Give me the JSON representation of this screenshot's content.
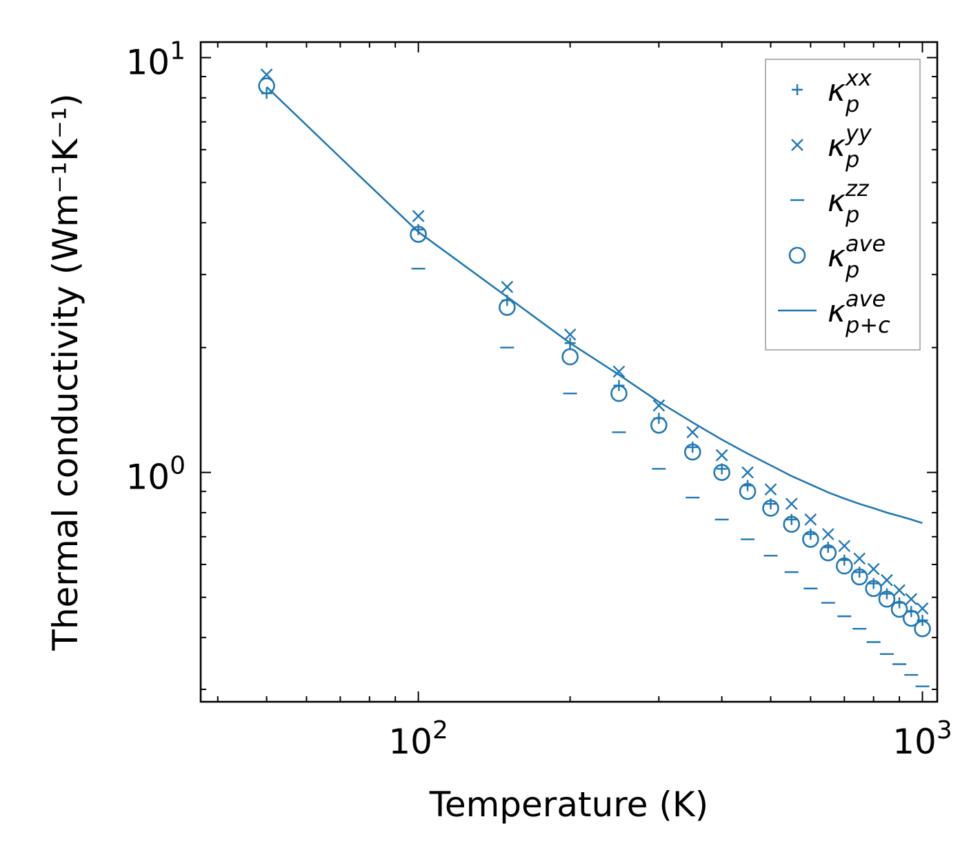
{
  "chart_data": {
    "type": "scatter",
    "x_scale": "log",
    "y_scale": "log",
    "xlabel": "Temperature (K)",
    "ylabel": "Thermal conductivity (Wm⁻¹K⁻¹)",
    "xlim": [
      37,
      1070
    ],
    "ylim": [
      0.28,
      10.9
    ],
    "x_ticks": [
      {
        "value": 100,
        "base": "10",
        "exp": "2"
      },
      {
        "value": 1000,
        "base": "10",
        "exp": "3"
      }
    ],
    "y_ticks": [
      {
        "value": 1,
        "base": "10",
        "exp": "0"
      },
      {
        "value": 10,
        "base": "10",
        "exp": "1"
      }
    ],
    "legend_position": "top-right",
    "color": "#1f77b4",
    "series": [
      {
        "name": "kappa_p^xx",
        "base": "κ",
        "sub": "p",
        "sup": "xx",
        "marker": "plus",
        "x": [
          50,
          100,
          150,
          200,
          250,
          300,
          350,
          400,
          450,
          500,
          550,
          600,
          650,
          700,
          750,
          800,
          850,
          900,
          950,
          1000
        ],
        "y": [
          8.2,
          3.85,
          2.6,
          2.05,
          1.62,
          1.35,
          1.15,
          1.02,
          0.93,
          0.84,
          0.77,
          0.71,
          0.66,
          0.615,
          0.575,
          0.54,
          0.51,
          0.485,
          0.462,
          0.44
        ]
      },
      {
        "name": "kappa_p^yy",
        "base": "κ",
        "sub": "p",
        "sup": "yy",
        "marker": "x",
        "x": [
          50,
          100,
          150,
          200,
          250,
          300,
          350,
          400,
          450,
          500,
          550,
          600,
          650,
          700,
          750,
          800,
          850,
          900,
          950,
          1000
        ],
        "y": [
          9.1,
          4.15,
          2.8,
          2.15,
          1.75,
          1.45,
          1.25,
          1.1,
          1.0,
          0.91,
          0.84,
          0.77,
          0.71,
          0.665,
          0.62,
          0.585,
          0.55,
          0.52,
          0.495,
          0.47
        ]
      },
      {
        "name": "kappa_p^zz",
        "base": "κ",
        "sub": "p",
        "sup": "zz",
        "marker": "dash",
        "x": [
          100,
          150,
          200,
          250,
          300,
          350,
          400,
          450,
          500,
          550,
          600,
          650,
          700,
          750,
          800,
          850,
          900,
          950,
          1000
        ],
        "y": [
          3.1,
          2.0,
          1.55,
          1.25,
          1.02,
          0.87,
          0.77,
          0.69,
          0.63,
          0.575,
          0.525,
          0.485,
          0.45,
          0.42,
          0.39,
          0.365,
          0.345,
          0.325,
          0.305
        ]
      },
      {
        "name": "kappa_p^ave",
        "base": "κ",
        "sub": "p",
        "sup": "ave",
        "marker": "circle",
        "x": [
          50,
          100,
          150,
          200,
          250,
          300,
          350,
          400,
          450,
          500,
          550,
          600,
          650,
          700,
          750,
          800,
          850,
          900,
          950,
          1000
        ],
        "y": [
          8.55,
          3.75,
          2.5,
          1.9,
          1.55,
          1.3,
          1.12,
          1.0,
          0.9,
          0.82,
          0.75,
          0.69,
          0.64,
          0.595,
          0.56,
          0.525,
          0.495,
          0.468,
          0.445,
          0.42
        ]
      },
      {
        "name": "kappa_p+c^ave",
        "base": "κ",
        "sub": "p+c",
        "sup": "ave",
        "marker": "line",
        "x": [
          50,
          75,
          100,
          150,
          200,
          250,
          300,
          350,
          400,
          450,
          500,
          550,
          600,
          650,
          700,
          750,
          800,
          850,
          900,
          950,
          1000
        ],
        "y": [
          8.5,
          5.3,
          3.8,
          2.65,
          2.05,
          1.72,
          1.48,
          1.32,
          1.2,
          1.11,
          1.04,
          0.98,
          0.935,
          0.895,
          0.865,
          0.84,
          0.82,
          0.8,
          0.785,
          0.77,
          0.755
        ]
      }
    ]
  }
}
